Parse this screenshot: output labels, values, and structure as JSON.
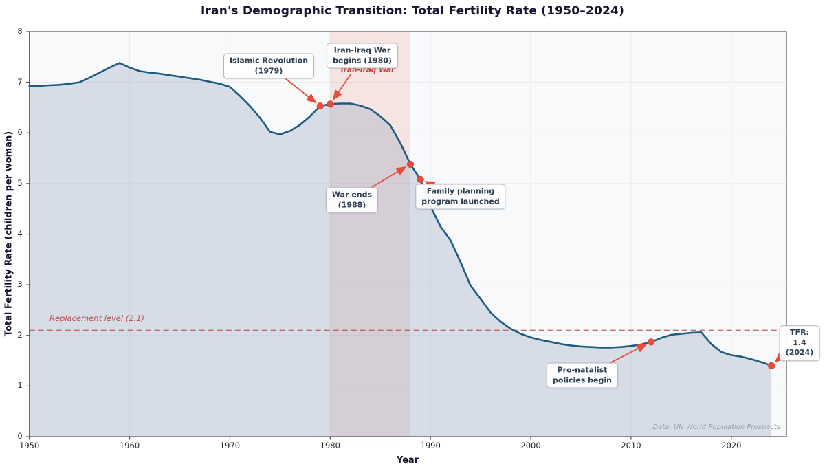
{
  "chart_data": {
    "type": "line",
    "title": "Iran's Demographic Transition: Total Fertility Rate (1950–2024)",
    "xlabel": "Year",
    "ylabel": "Total Fertility Rate (children per woman)",
    "xlim": [
      1950,
      2025.5
    ],
    "ylim": [
      0,
      8
    ],
    "x_ticks": [
      1950,
      1960,
      1970,
      1980,
      1990,
      2000,
      2010,
      2020
    ],
    "y_ticks": [
      0,
      1,
      2,
      3,
      4,
      5,
      6,
      7,
      8
    ],
    "grid": true,
    "legend": false,
    "area_fill": true,
    "series": [
      {
        "name": "Total Fertility Rate",
        "x": [
          1950,
          1951,
          1952,
          1953,
          1954,
          1955,
          1956,
          1957,
          1958,
          1959,
          1960,
          1961,
          1962,
          1963,
          1964,
          1965,
          1966,
          1967,
          1968,
          1969,
          1970,
          1971,
          1972,
          1973,
          1974,
          1975,
          1976,
          1977,
          1978,
          1979,
          1980,
          1981,
          1982,
          1983,
          1984,
          1985,
          1986,
          1987,
          1988,
          1989,
          1990,
          1991,
          1992,
          1993,
          1994,
          1995,
          1996,
          1997,
          1998,
          1999,
          2000,
          2001,
          2002,
          2003,
          2004,
          2005,
          2006,
          2007,
          2008,
          2009,
          2010,
          2011,
          2012,
          2013,
          2014,
          2015,
          2016,
          2017,
          2018,
          2019,
          2020,
          2021,
          2022,
          2023,
          2024
        ],
        "y": [
          6.93,
          6.93,
          6.94,
          6.95,
          6.97,
          7.0,
          7.09,
          7.19,
          7.29,
          7.38,
          7.29,
          7.22,
          7.19,
          7.17,
          7.14,
          7.11,
          7.08,
          7.05,
          7.01,
          6.97,
          6.91,
          6.73,
          6.53,
          6.3,
          6.02,
          5.97,
          6.04,
          6.16,
          6.33,
          6.53,
          6.57,
          6.58,
          6.58,
          6.54,
          6.47,
          6.33,
          6.15,
          5.8,
          5.38,
          5.08,
          4.55,
          4.15,
          3.88,
          3.45,
          2.98,
          2.72,
          2.45,
          2.27,
          2.13,
          2.03,
          1.96,
          1.91,
          1.87,
          1.83,
          1.8,
          1.78,
          1.77,
          1.76,
          1.76,
          1.77,
          1.79,
          1.82,
          1.87,
          1.95,
          2.01,
          2.03,
          2.05,
          2.06,
          1.83,
          1.67,
          1.61,
          1.58,
          1.53,
          1.47,
          1.4
        ]
      }
    ],
    "replacement_line": {
      "value": 2.1,
      "label": "Replacement level (2.1)"
    },
    "war_band": {
      "start": 1980,
      "end": 1988,
      "label": "Iran-Iraq War"
    },
    "annotations": [
      {
        "id": "islamic-revolution",
        "text": "Islamic Revolution\n(1979)",
        "year": 1979,
        "value": 6.53
      },
      {
        "id": "war-begins",
        "text": "Iran-Iraq War\nbegins (1980)",
        "year": 1980,
        "value": 6.57
      },
      {
        "id": "war-ends",
        "text": "War ends\n(1988)",
        "year": 1988,
        "value": 5.38
      },
      {
        "id": "family-planning",
        "text": "Family planning\nprogram launched",
        "year": 1989,
        "value": 5.08
      },
      {
        "id": "pro-natalist",
        "text": "Pro-natalist\npolicies begin",
        "year": 2012,
        "value": 1.87
      },
      {
        "id": "tfr-2024",
        "text": "TFR: 1.4\n(2024)",
        "year": 2024,
        "value": 1.4
      }
    ],
    "source": "Data: UN World Population Prospects",
    "colors": {
      "line": "#1d5c7e",
      "area_fill": "rgba(130,152,182,0.28)",
      "war_band": "rgba(230,90,70,0.13)",
      "accent": "#e74c3c",
      "replacement": "#c0544f",
      "plot_bg": "#f8f9fa",
      "grid": "#e8eaed",
      "spine": "#555555",
      "annotation_text": "#2c3e50"
    }
  }
}
